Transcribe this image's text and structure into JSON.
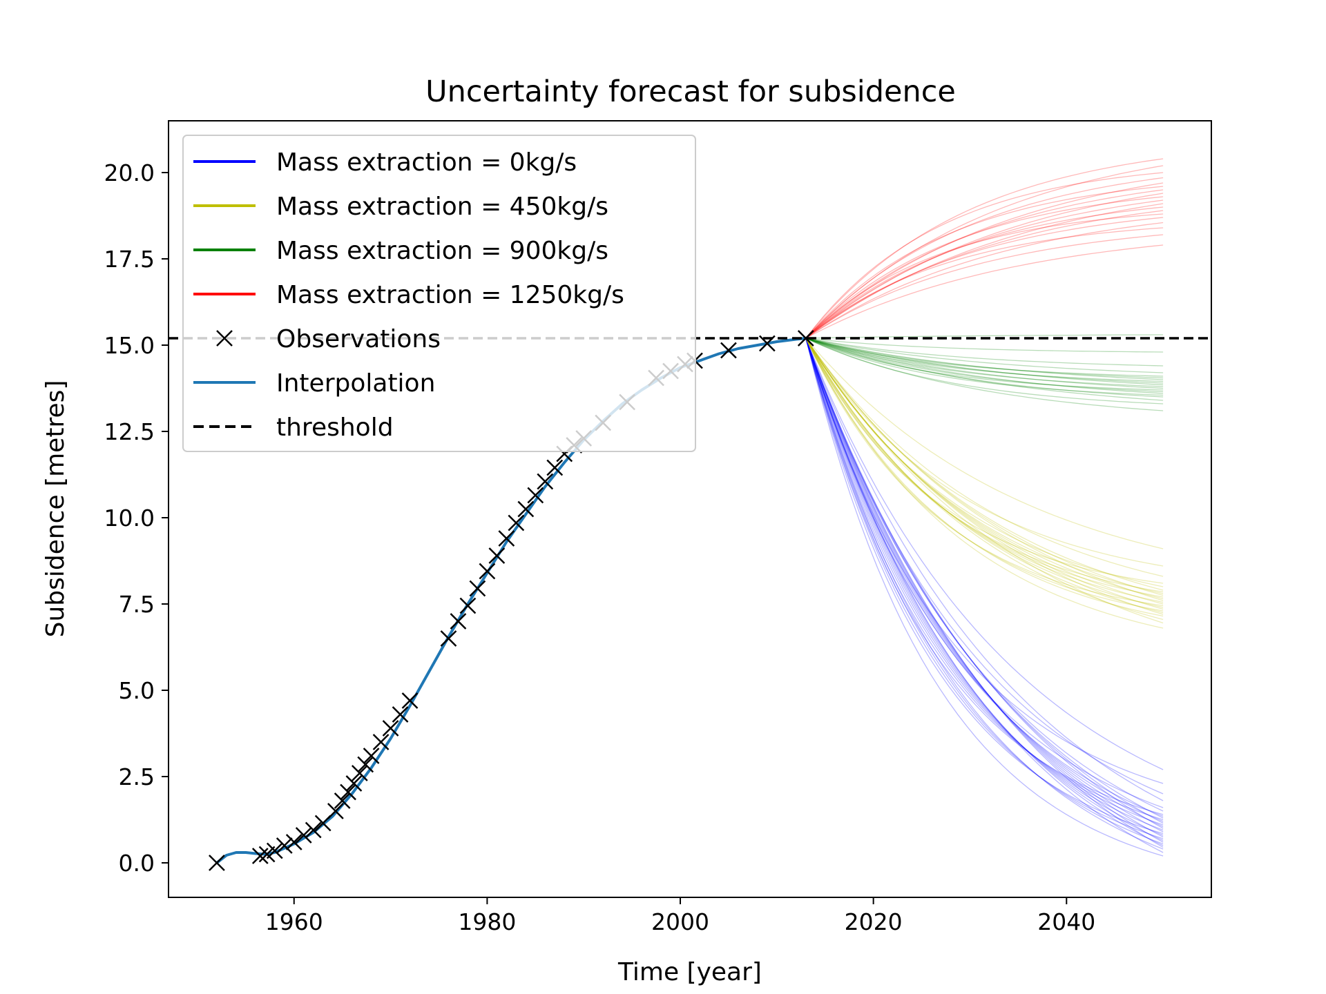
{
  "chart_data": {
    "type": "line",
    "title": "Uncertainty forecast for subsidence",
    "xlabel": "Time [year]",
    "ylabel": "Subsidence [metres]",
    "xlim": [
      1947,
      2055
    ],
    "ylim": [
      -1.0,
      21.5
    ],
    "xticks": [
      1960,
      1980,
      2000,
      2020,
      2040
    ],
    "yticks": [
      0.0,
      2.5,
      5.0,
      7.5,
      10.0,
      12.5,
      15.0,
      17.5,
      20.0
    ],
    "xtick_labels": [
      "1960",
      "1980",
      "2000",
      "2020",
      "2040"
    ],
    "ytick_labels": [
      "0.0",
      "2.5",
      "5.0",
      "7.5",
      "10.0",
      "12.5",
      "15.0",
      "17.5",
      "20.0"
    ],
    "grid": false,
    "legend": {
      "placement": "upper-left",
      "entries": [
        {
          "label": "Mass extraction = 0kg/s",
          "color": "#0000ff",
          "style": "line"
        },
        {
          "label": "Mass extraction = 450kg/s",
          "color": "#bfbf00",
          "style": "line"
        },
        {
          "label": "Mass extraction = 900kg/s",
          "color": "#008000",
          "style": "line"
        },
        {
          "label": "Mass extraction = 1250kg/s",
          "color": "#ff0000",
          "style": "line"
        },
        {
          "label": "Observations",
          "color": "#000000",
          "style": "marker-x"
        },
        {
          "label": "Interpolation",
          "color": "#1f77b4",
          "style": "line"
        },
        {
          "label": "threshold",
          "color": "#000000",
          "style": "dashed"
        }
      ]
    },
    "threshold": {
      "y": 15.2,
      "color": "#000000"
    },
    "observations": {
      "color": "#000000",
      "x": [
        1952.0,
        1956.5,
        1957.2,
        1958.0,
        1959.0,
        1960.0,
        1961.0,
        1962.0,
        1963.0,
        1964.3,
        1965.0,
        1965.6,
        1966.2,
        1966.8,
        1967.4,
        1968.0,
        1969.0,
        1970.0,
        1971.0,
        1972.0,
        1976.0,
        1977.0,
        1978.0,
        1979.0,
        1980.0,
        1981.0,
        1982.0,
        1983.0,
        1984.0,
        1985.0,
        1986.0,
        1987.0,
        1988.0,
        1989.0,
        1990.0,
        1992.0,
        1994.5,
        1997.5,
        1999.0,
        2000.5,
        2001.5,
        2005.0,
        2009.0,
        2013.0
      ],
      "y": [
        0.0,
        0.2,
        0.25,
        0.35,
        0.5,
        0.6,
        0.8,
        0.95,
        1.15,
        1.5,
        1.8,
        2.05,
        2.3,
        2.6,
        2.85,
        3.1,
        3.5,
        3.9,
        4.3,
        4.7,
        6.5,
        7.0,
        7.45,
        7.95,
        8.45,
        8.9,
        9.4,
        9.85,
        10.25,
        10.65,
        11.05,
        11.45,
        11.85,
        12.1,
        12.3,
        12.75,
        13.35,
        14.05,
        14.25,
        14.45,
        14.55,
        14.85,
        15.05,
        15.2
      ]
    },
    "interpolation": {
      "color": "#1f77b4",
      "x": [
        1952,
        1953,
        1954,
        1955,
        1956,
        1957,
        1958,
        1960,
        1962,
        1964,
        1966,
        1968,
        1970,
        1972,
        1974,
        1976,
        1978,
        1980,
        1982,
        1984,
        1986,
        1988,
        1990,
        1992,
        1994,
        1996,
        1998,
        2000,
        2002,
        2004,
        2006,
        2008,
        2010,
        2012,
        2013
      ],
      "y": [
        0.0,
        0.22,
        0.3,
        0.3,
        0.27,
        0.25,
        0.3,
        0.55,
        0.88,
        1.35,
        2.0,
        2.75,
        3.6,
        4.55,
        5.55,
        6.55,
        7.5,
        8.4,
        9.3,
        10.1,
        10.9,
        11.6,
        12.25,
        12.8,
        13.3,
        13.7,
        14.05,
        14.35,
        14.55,
        14.75,
        14.9,
        15.0,
        15.1,
        15.17,
        15.2
      ]
    },
    "series": [
      {
        "name": "Mass extraction = 0kg/s",
        "color": "#0000ff",
        "x_start": 2013,
        "x_end": 2050,
        "y_start": 15.2,
        "end_values": [
          0.2,
          0.3,
          0.4,
          0.45,
          0.5,
          0.55,
          0.6,
          0.65,
          0.7,
          0.75,
          0.8,
          0.85,
          0.9,
          0.95,
          1.0,
          1.05,
          1.1,
          1.15,
          1.2,
          1.25,
          1.3,
          1.35,
          1.4,
          1.5,
          1.6,
          1.8,
          2.0,
          2.3,
          2.7
        ]
      },
      {
        "name": "Mass extraction = 450kg/s",
        "color": "#bfbf00",
        "x_start": 2013,
        "x_end": 2050,
        "y_start": 15.2,
        "end_values": [
          6.8,
          6.95,
          7.05,
          7.15,
          7.2,
          7.25,
          7.3,
          7.35,
          7.4,
          7.45,
          7.5,
          7.55,
          7.6,
          7.65,
          7.7,
          7.75,
          7.8,
          7.85,
          7.9,
          8.0,
          8.1,
          8.3,
          8.6,
          9.1
        ]
      },
      {
        "name": "Mass extraction = 900kg/s",
        "color": "#008000",
        "x_start": 2013,
        "x_end": 2050,
        "y_start": 15.2,
        "end_values": [
          13.1,
          13.3,
          13.4,
          13.5,
          13.55,
          13.6,
          13.65,
          13.7,
          13.75,
          13.8,
          13.85,
          13.9,
          13.95,
          14.0,
          14.05,
          14.1,
          14.2,
          14.4,
          14.8,
          15.3
        ]
      },
      {
        "name": "Mass extraction = 1250kg/s",
        "color": "#ff0000",
        "x_start": 2013,
        "x_end": 2050,
        "y_start": 15.2,
        "end_values": [
          17.9,
          18.2,
          18.4,
          18.55,
          18.7,
          18.8,
          18.9,
          19.0,
          19.1,
          19.2,
          19.3,
          19.4,
          19.5,
          19.6,
          19.7,
          19.85,
          20.0,
          20.2,
          20.4
        ]
      }
    ]
  }
}
